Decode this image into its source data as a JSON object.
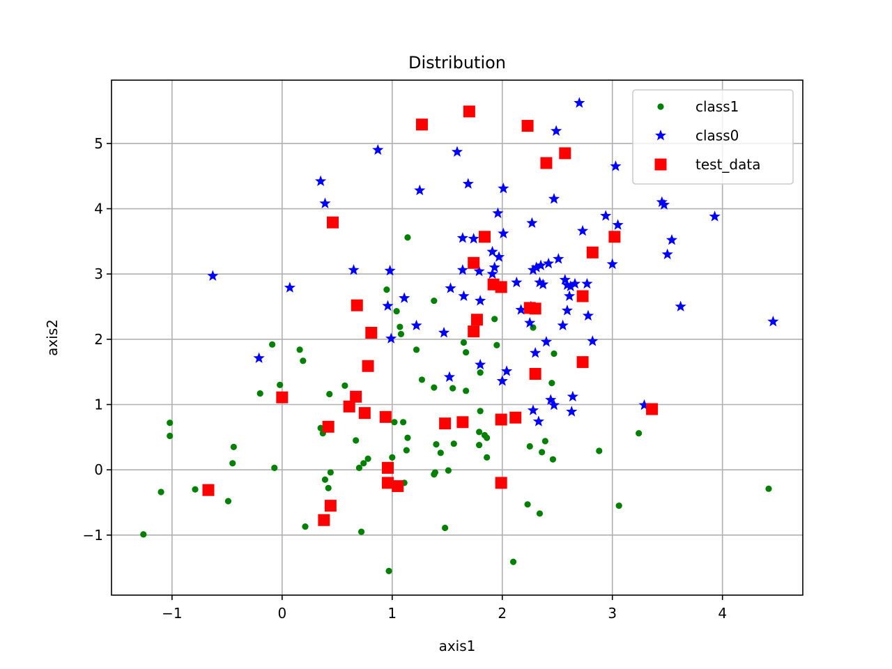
{
  "chart_data": {
    "type": "scatter",
    "title": "Distribution",
    "xlabel": "axis1",
    "ylabel": "axis2",
    "xlim": [
      -1.55,
      4.73
    ],
    "ylim": [
      -1.92,
      5.97
    ],
    "xticks": [
      -1,
      0,
      1,
      2,
      3,
      4
    ],
    "yticks": [
      -1,
      0,
      1,
      2,
      3,
      4,
      5
    ],
    "xtick_labels": [
      "−1",
      "0",
      "1",
      "2",
      "3",
      "4"
    ],
    "ytick_labels": [
      "−1",
      "0",
      "1",
      "2",
      "3",
      "4",
      "5"
    ],
    "grid": true,
    "legend_position": "top-right",
    "series": [
      {
        "name": "class1",
        "marker": "circle",
        "color": "#008000",
        "points": [
          [
            -1.26,
            -0.99
          ],
          [
            -1.1,
            -0.34
          ],
          [
            -1.02,
            0.52
          ],
          [
            -1.02,
            0.72
          ],
          [
            -0.79,
            -0.3
          ],
          [
            -0.49,
            -0.48
          ],
          [
            -0.45,
            0.1
          ],
          [
            -0.44,
            0.35
          ],
          [
            -0.2,
            1.17
          ],
          [
            -0.09,
            1.92
          ],
          [
            -0.07,
            0.03
          ],
          [
            -0.02,
            1.3
          ],
          [
            0.16,
            1.84
          ],
          [
            0.19,
            1.67
          ],
          [
            0.21,
            -0.87
          ],
          [
            0.35,
            0.64
          ],
          [
            0.37,
            0.56
          ],
          [
            0.39,
            -0.15
          ],
          [
            0.42,
            -0.28
          ],
          [
            0.43,
            1.16
          ],
          [
            0.44,
            -0.04
          ],
          [
            0.57,
            1.29
          ],
          [
            0.67,
            0.45
          ],
          [
            0.7,
            0.03
          ],
          [
            0.72,
            -0.95
          ],
          [
            0.74,
            0.1
          ],
          [
            0.78,
            0.17
          ],
          [
            0.95,
            2.76
          ],
          [
            1.0,
            0.19
          ],
          [
            1.02,
            0.73
          ],
          [
            1.04,
            2.43
          ],
          [
            1.07,
            2.19
          ],
          [
            1.08,
            2.08
          ],
          [
            1.1,
            0.73
          ],
          [
            1.11,
            -0.2
          ],
          [
            1.13,
            0.3
          ],
          [
            1.14,
            0.49
          ],
          [
            1.14,
            3.56
          ],
          [
            1.22,
            1.84
          ],
          [
            1.27,
            1.38
          ],
          [
            1.38,
            1.26
          ],
          [
            1.38,
            2.59
          ],
          [
            1.38,
            -0.07
          ],
          [
            1.39,
            -0.04
          ],
          [
            1.4,
            0.39
          ],
          [
            1.44,
            0.26
          ],
          [
            1.48,
            -0.89
          ],
          [
            1.51,
            -0.01
          ],
          [
            1.55,
            1.25
          ],
          [
            1.56,
            0.4
          ],
          [
            1.65,
            1.95
          ],
          [
            1.67,
            1.8
          ],
          [
            1.67,
            1.21
          ],
          [
            1.79,
            0.58
          ],
          [
            1.79,
            0.38
          ],
          [
            1.8,
            1.49
          ],
          [
            1.8,
            0.9
          ],
          [
            1.84,
            0.53
          ],
          [
            1.86,
            0.49
          ],
          [
            1.86,
            0.19
          ],
          [
            1.93,
            2.31
          ],
          [
            1.95,
            1.91
          ],
          [
            2.1,
            -1.41
          ],
          [
            2.23,
            -0.53
          ],
          [
            2.25,
            0.36
          ],
          [
            2.28,
            2.18
          ],
          [
            2.34,
            -0.67
          ],
          [
            2.36,
            0.27
          ],
          [
            2.39,
            0.44
          ],
          [
            2.45,
            1.33
          ],
          [
            2.46,
            0.16
          ],
          [
            2.47,
            1.78
          ],
          [
            2.88,
            0.29
          ],
          [
            3.06,
            -0.55
          ],
          [
            3.24,
            0.56
          ],
          [
            4.42,
            -0.29
          ],
          [
            0.97,
            -1.55
          ]
        ]
      },
      {
        "name": "class0",
        "marker": "star",
        "color": "#0000ff",
        "points": [
          [
            -0.63,
            2.97
          ],
          [
            -0.21,
            1.71
          ],
          [
            0.07,
            2.79
          ],
          [
            0.35,
            4.42
          ],
          [
            0.39,
            4.08
          ],
          [
            0.65,
            3.06
          ],
          [
            0.87,
            4.9
          ],
          [
            0.96,
            2.51
          ],
          [
            0.98,
            3.05
          ],
          [
            0.99,
            2.01
          ],
          [
            1.11,
            2.63
          ],
          [
            1.22,
            2.21
          ],
          [
            1.25,
            4.28
          ],
          [
            1.47,
            2.1
          ],
          [
            1.52,
            1.42
          ],
          [
            1.53,
            2.78
          ],
          [
            1.59,
            4.87
          ],
          [
            1.64,
            3.55
          ],
          [
            1.64,
            3.06
          ],
          [
            1.65,
            2.66
          ],
          [
            1.69,
            4.38
          ],
          [
            1.74,
            3.54
          ],
          [
            1.79,
            3.04
          ],
          [
            1.8,
            2.59
          ],
          [
            1.8,
            1.61
          ],
          [
            1.91,
            3.34
          ],
          [
            1.91,
            3.0
          ],
          [
            1.93,
            3.1
          ],
          [
            1.96,
            3.93
          ],
          [
            1.97,
            3.26
          ],
          [
            2.0,
            1.36
          ],
          [
            2.01,
            4.31
          ],
          [
            2.01,
            3.62
          ],
          [
            2.04,
            1.51
          ],
          [
            2.13,
            2.87
          ],
          [
            2.17,
            2.45
          ],
          [
            2.25,
            2.25
          ],
          [
            2.26,
            2.5
          ],
          [
            2.27,
            3.78
          ],
          [
            2.28,
            0.91
          ],
          [
            2.28,
            3.06
          ],
          [
            2.3,
            1.79
          ],
          [
            2.31,
            3.1
          ],
          [
            2.33,
            0.74
          ],
          [
            2.34,
            2.87
          ],
          [
            2.35,
            3.13
          ],
          [
            2.37,
            2.84
          ],
          [
            2.4,
            1.96
          ],
          [
            2.42,
            3.16
          ],
          [
            2.44,
            1.07
          ],
          [
            2.47,
            0.99
          ],
          [
            2.47,
            4.15
          ],
          [
            2.49,
            5.19
          ],
          [
            2.51,
            3.23
          ],
          [
            2.55,
            2.21
          ],
          [
            2.57,
            2.91
          ],
          [
            2.59,
            2.44
          ],
          [
            2.59,
            2.83
          ],
          [
            2.61,
            2.66
          ],
          [
            2.62,
            2.81
          ],
          [
            2.63,
            0.89
          ],
          [
            2.64,
            1.12
          ],
          [
            2.66,
            2.85
          ],
          [
            2.7,
            5.62
          ],
          [
            2.73,
            3.66
          ],
          [
            2.77,
            2.85
          ],
          [
            2.78,
            2.36
          ],
          [
            2.82,
            1.97
          ],
          [
            2.94,
            3.89
          ],
          [
            3.0,
            3.15
          ],
          [
            3.03,
            4.65
          ],
          [
            3.05,
            3.75
          ],
          [
            3.29,
            0.99
          ],
          [
            3.45,
            4.1
          ],
          [
            3.47,
            4.06
          ],
          [
            3.5,
            3.3
          ],
          [
            3.54,
            3.52
          ],
          [
            3.62,
            2.5
          ],
          [
            3.93,
            3.88
          ],
          [
            4.46,
            2.27
          ]
        ]
      },
      {
        "name": "test_data",
        "marker": "square",
        "color": "#ff0000",
        "points": [
          [
            -0.67,
            -0.31
          ],
          [
            0.0,
            1.11
          ],
          [
            0.38,
            -0.77
          ],
          [
            0.42,
            0.66
          ],
          [
            0.44,
            -0.55
          ],
          [
            0.46,
            3.79
          ],
          [
            0.61,
            0.97
          ],
          [
            0.67,
            1.12
          ],
          [
            0.68,
            2.52
          ],
          [
            0.75,
            0.87
          ],
          [
            0.78,
            1.59
          ],
          [
            0.81,
            2.1
          ],
          [
            0.94,
            0.81
          ],
          [
            0.96,
            0.03
          ],
          [
            0.96,
            -0.2
          ],
          [
            1.05,
            -0.25
          ],
          [
            1.27,
            5.29
          ],
          [
            1.48,
            0.71
          ],
          [
            1.64,
            0.73
          ],
          [
            1.7,
            5.49
          ],
          [
            1.74,
            3.17
          ],
          [
            1.74,
            2.12
          ],
          [
            1.77,
            2.3
          ],
          [
            1.84,
            3.57
          ],
          [
            1.92,
            2.84
          ],
          [
            1.99,
            2.8
          ],
          [
            1.99,
            0.77
          ],
          [
            1.99,
            -0.2
          ],
          [
            2.12,
            0.8
          ],
          [
            2.23,
            5.27
          ],
          [
            2.25,
            2.48
          ],
          [
            2.3,
            1.47
          ],
          [
            2.3,
            2.47
          ],
          [
            2.4,
            4.7
          ],
          [
            2.57,
            4.85
          ],
          [
            2.73,
            2.66
          ],
          [
            2.73,
            1.65
          ],
          [
            2.82,
            3.33
          ],
          [
            3.02,
            3.57
          ],
          [
            3.36,
            0.93
          ]
        ]
      }
    ]
  }
}
